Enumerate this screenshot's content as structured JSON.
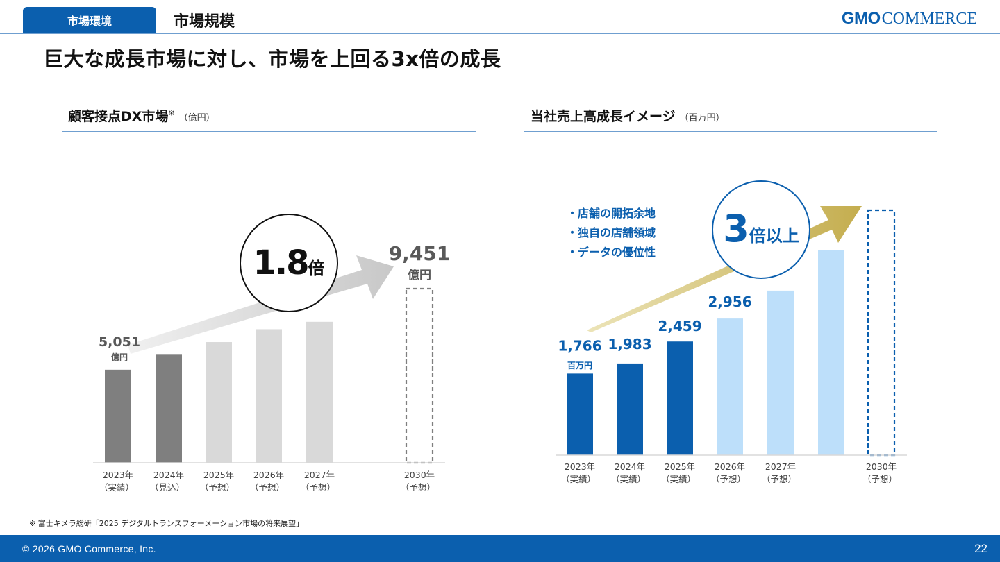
{
  "header": {
    "tab_label": "市場環境",
    "section_title": "市場規模",
    "logo_gmo": "GMO",
    "logo_commerce": "COMMERCE"
  },
  "main_title": "巨大な成長市場に対し、市場を上回る3x倍の成長",
  "left_panel": {
    "title": "顧客接点DX市場",
    "title_mark": "※",
    "unit": "（億円）",
    "growth_badge": {
      "number": "1.8",
      "suffix": "倍"
    },
    "start_label": {
      "value": "5,051",
      "unit": "億円"
    },
    "end_label": {
      "value": "9,451",
      "unit": "億円"
    }
  },
  "right_panel": {
    "title": "当社売上高成長イメージ",
    "unit": "（百万円）",
    "growth_badge": {
      "number": "3",
      "suffix": "倍以上"
    },
    "bullets": [
      "・店舗の開拓余地",
      "・独自の店舗領域",
      "・データの優位性"
    ],
    "first_unit": "百万円"
  },
  "chart_data": [
    {
      "type": "bar",
      "title": "顧客接点DX市場",
      "unit": "億円",
      "categories": [
        [
          "2023年",
          "（実績）"
        ],
        [
          "2024年",
          "（見込）"
        ],
        [
          "2025年",
          "（予想）"
        ],
        [
          "2026年",
          "（予想）"
        ],
        [
          "2027年",
          "（予想）"
        ],
        [
          "2030年",
          "（予想）"
        ]
      ],
      "values": [
        5051,
        5900,
        6550,
        7250,
        7650,
        9451
      ],
      "value_labels": [
        "5,051",
        "",
        "",
        "",
        "",
        "9,451"
      ],
      "status": [
        "actual",
        "actual",
        "forecast",
        "forecast",
        "forecast",
        "target"
      ],
      "colors": {
        "actual": "#7f7f7f",
        "forecast": "#d9d9d9",
        "target": "#7f7f7f"
      }
    },
    {
      "type": "bar",
      "title": "当社売上高成長イメージ",
      "unit": "百万円",
      "categories": [
        [
          "2023年",
          "（実績）"
        ],
        [
          "2024年",
          "（実績）"
        ],
        [
          "2025年",
          "（実績）"
        ],
        [
          "2026年",
          "（予想）"
        ],
        [
          "2027年",
          "（予想）"
        ],
        [
          "",
          ""
        ],
        [
          "2030年",
          "（予想）"
        ]
      ],
      "values": [
        1766,
        1983,
        2459,
        2956,
        3560,
        4440,
        5300
      ],
      "value_labels": [
        "1,766",
        "1,983",
        "2,459",
        "2,956",
        "",
        "",
        ""
      ],
      "status": [
        "actual",
        "actual",
        "actual",
        "forecast",
        "forecast",
        "forecast",
        "target"
      ],
      "colors": {
        "actual": "#0b5fae",
        "forecast": "#bddffa",
        "target": "#0b5fae",
        "label": "#0b5fae",
        "arrow": "#c9b55a"
      }
    }
  ],
  "footnote": "※ 富士キメラ総研「2025 デジタルトランスフォーメーション市場の将来展望」",
  "footer": {
    "copyright": "© 2026 GMO Commerce, Inc.",
    "page_number": "22"
  }
}
